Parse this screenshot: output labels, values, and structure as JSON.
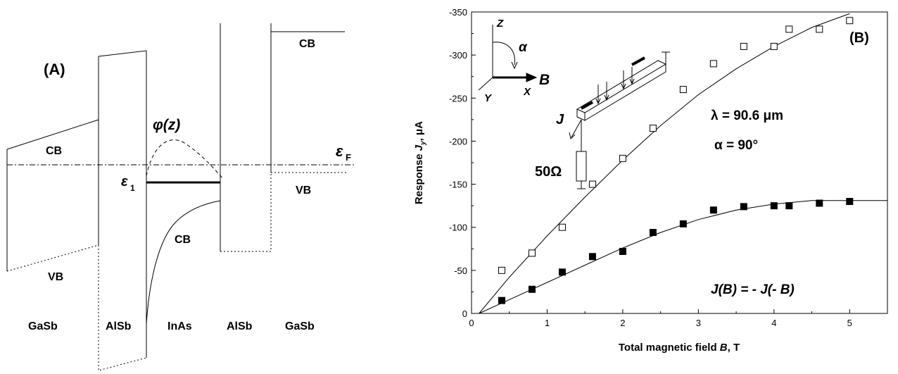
{
  "panel_a": {
    "label": "(A)",
    "wavefunction_label": "φ(z)",
    "fermi_symbol": "ε",
    "fermi_sub": "F",
    "level_symbol": "ε",
    "level_sub": "1",
    "band_labels": [
      "CB",
      "VB",
      "CB",
      "CB",
      "VB"
    ],
    "layers": [
      "GaSb",
      "AlSb",
      "InAs",
      "AlSb",
      "GaSb"
    ]
  },
  "panel_b": {
    "label": "(B)",
    "axis_z": "Z",
    "axis_x": "X",
    "axis_y": "Y",
    "angle_symbol": "α",
    "field_symbol": "B",
    "current_symbol": "J",
    "resistor_label": "50Ω",
    "lambda_label": "λ  = 90.6 μm",
    "alpha_label": "α  = 90°",
    "symmetry_label": "J(B) = - J(- B)",
    "xlabel": "Total magnetic field B, T",
    "ylabel": "Response Jy, μA"
  },
  "chart_data": {
    "type": "scatter",
    "xlabel": "Total magnetic field B, T",
    "ylabel": "Response Jy, μA",
    "xlim": [
      0,
      5.5
    ],
    "ylim": [
      0,
      -350
    ],
    "x_ticks": [
      0,
      1,
      2,
      3,
      4,
      5
    ],
    "y_ticks": [
      0,
      -50,
      -100,
      -150,
      -200,
      -250,
      -300,
      -350
    ],
    "series": [
      {
        "marker": "open-square",
        "x": [
          0.4,
          0.8,
          1.2,
          1.6,
          2.0,
          2.4,
          2.8,
          3.2,
          3.6,
          4.0,
          4.2,
          4.6,
          5.0
        ],
        "y": [
          -50,
          -70,
          -100,
          -150,
          -180,
          -215,
          -260,
          -290,
          -310,
          -310,
          -330,
          -330,
          -340
        ]
      },
      {
        "marker": "filled-square",
        "x": [
          0.4,
          0.8,
          1.2,
          1.6,
          2.0,
          2.4,
          2.8,
          3.2,
          3.6,
          4.0,
          4.2,
          4.6,
          5.0
        ],
        "y": [
          -15,
          -28,
          -48,
          -66,
          -72,
          -94,
          -104,
          -120,
          -124,
          -125,
          -125,
          -128,
          -130
        ]
      }
    ],
    "fits": [
      {
        "x": [
          0.1,
          0.5,
          1.0,
          1.5,
          2.0,
          2.5,
          3.0,
          3.5,
          4.0,
          4.5,
          5.0
        ],
        "y": [
          0,
          -42,
          -90,
          -135,
          -178,
          -218,
          -254,
          -284,
          -310,
          -332,
          -348
        ]
      },
      {
        "x": [
          0.1,
          0.5,
          1.0,
          1.5,
          2.0,
          2.5,
          3.0,
          3.5,
          4.0,
          4.5,
          5.0,
          5.5
        ],
        "y": [
          0,
          -16,
          -36,
          -56,
          -76,
          -94,
          -109,
          -120,
          -127,
          -131,
          -131,
          -131
        ]
      }
    ]
  }
}
